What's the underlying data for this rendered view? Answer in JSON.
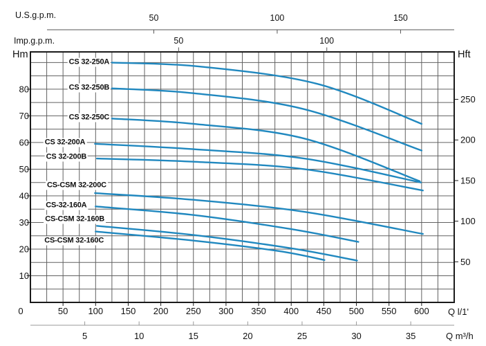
{
  "chart_data": {
    "type": "line",
    "description": "Pump head-flow performance curves for CS/CSM 32 series pumps",
    "axes": {
      "x": {
        "label": "Q l/1'",
        "unit": "l/min",
        "min": 0,
        "max": 650,
        "grid_step": 25,
        "ticks": [
          0,
          50,
          100,
          150,
          200,
          250,
          300,
          350,
          400,
          450,
          500,
          550,
          600
        ]
      },
      "x_m3h": {
        "label": "Q m³/h",
        "ticks": [
          5,
          10,
          15,
          20,
          25,
          30,
          35
        ],
        "lmin_per_unit": 16.667
      },
      "x_usgpm": {
        "label": "U.S.g.p.m.",
        "ticks": [
          50,
          100,
          150
        ],
        "lmin_per_unit": 3.785
      },
      "x_impgpm": {
        "label": "Imp.g.p.m.",
        "ticks": [
          50,
          100
        ],
        "lmin_per_unit": 4.546
      },
      "y": {
        "label": "Hm",
        "unit": "m",
        "min": 0,
        "max": 94,
        "grid_step": 5,
        "ticks": [
          10,
          20,
          30,
          40,
          50,
          60,
          70,
          80
        ],
        "origin_label": "0"
      },
      "y_ft": {
        "label": "Hft",
        "ticks": [
          50,
          100,
          150,
          200,
          250
        ],
        "m_per_unit": 0.3048
      }
    },
    "series": [
      {
        "name": "CS 32-250A",
        "points": [
          [
            125,
            90
          ],
          [
            260,
            88.5
          ],
          [
            440,
            82
          ],
          [
            600,
            67
          ]
        ],
        "label_at": [
          90,
          90
        ]
      },
      {
        "name": "CS 32-250B",
        "points": [
          [
            125,
            80.3
          ],
          [
            250,
            78.5
          ],
          [
            420,
            72.5
          ],
          [
            600,
            57
          ]
        ],
        "label_at": [
          90,
          80.4
        ]
      },
      {
        "name": "CS 32-250C",
        "points": [
          [
            125,
            69
          ],
          [
            250,
            67
          ],
          [
            420,
            61.5
          ],
          [
            597,
            45.5
          ]
        ],
        "label_at": [
          90,
          69.3
        ]
      },
      {
        "name": "CS 32-200A",
        "points": [
          [
            99,
            59.5
          ],
          [
            250,
            57.5
          ],
          [
            420,
            54
          ],
          [
            599,
            45
          ]
        ],
        "label_at": [
          53,
          60
        ]
      },
      {
        "name": "CS 32-200B",
        "points": [
          [
            102,
            54
          ],
          [
            250,
            52.8
          ],
          [
            420,
            50
          ],
          [
            602,
            42
          ]
        ],
        "label_at": [
          55,
          54.5
        ]
      },
      {
        "name": "CS-CSM 32-200C",
        "points": [
          [
            99,
            41
          ],
          [
            250,
            38.5
          ],
          [
            420,
            34
          ],
          [
            602,
            25.7
          ]
        ],
        "label_at": [
          71,
          43.9
        ]
      },
      {
        "name": "CS-32-160A",
        "points": [
          [
            100,
            36
          ],
          [
            250,
            32.8
          ],
          [
            400,
            27.5
          ],
          [
            503,
            22.7
          ]
        ],
        "label_at": [
          55,
          36.3
        ]
      },
      {
        "name": "CS-CSM 32-160B",
        "points": [
          [
            102,
            28.7
          ],
          [
            250,
            25.3
          ],
          [
            400,
            20.3
          ],
          [
            501,
            15.7
          ]
        ],
        "label_at": [
          68,
          31.1
        ]
      },
      {
        "name": "CS-CSM 32-160C",
        "points": [
          [
            100,
            26.6
          ],
          [
            250,
            23.2
          ],
          [
            380,
            19.3
          ],
          [
            451,
            15.9
          ]
        ],
        "label_at": [
          67,
          23.1
        ]
      }
    ],
    "colors": {
      "curve": "#2088bf",
      "grid": "#606060",
      "frame": "#1a1a1a",
      "scale_line": "#555555",
      "m3h_line": "#999999",
      "text": "#111111"
    },
    "legend_position": "labels-on-curves",
    "grid": true
  }
}
